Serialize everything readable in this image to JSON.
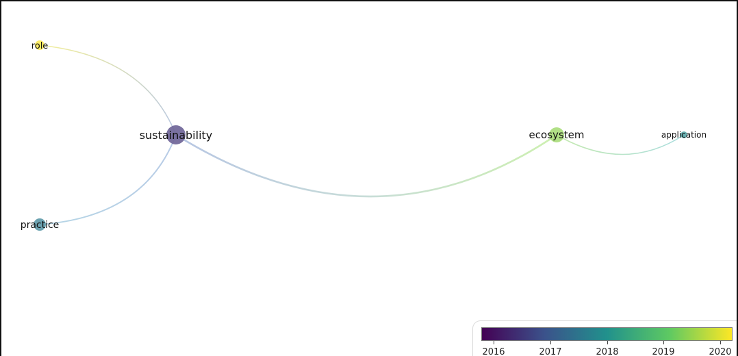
{
  "nodes": [
    {
      "id": "role",
      "label": "role",
      "year": 2020.0
    },
    {
      "id": "sustainability",
      "label": "sustainability",
      "year": 2016.6
    },
    {
      "id": "practice",
      "label": "practice",
      "year": 2017.6
    },
    {
      "id": "ecosystem",
      "label": "ecosystem",
      "year": 2019.3
    },
    {
      "id": "application",
      "label": "application",
      "year": 2017.9
    }
  ],
  "links": [
    {
      "source": "role",
      "target": "sustainability"
    },
    {
      "source": "sustainability",
      "target": "practice"
    },
    {
      "source": "sustainability",
      "target": "ecosystem"
    },
    {
      "source": "ecosystem",
      "target": "application"
    }
  ],
  "legend": {
    "color_scale": [
      "#440154",
      "#3b528b",
      "#21918c",
      "#5ec962",
      "#fde725"
    ],
    "ticks": [
      "2016",
      "2017",
      "2018",
      "2019",
      "2020"
    ]
  }
}
